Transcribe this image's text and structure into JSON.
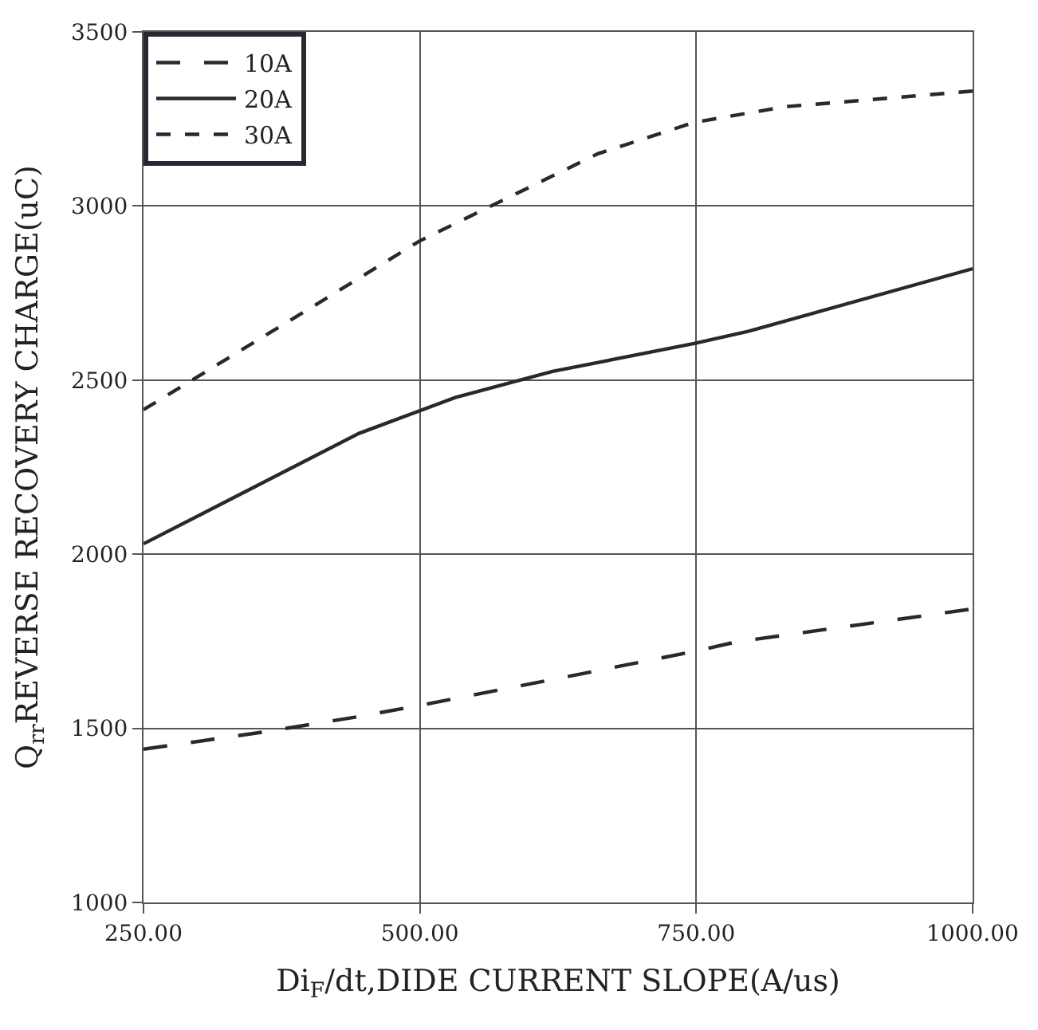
{
  "chart_data": {
    "type": "line",
    "xlabel": "Di$_{F}$/dt,DIDE CURRENT SLOPE(A/us)",
    "ylabel": "Q$_{rr}$REVERSE RECOVERY CHARGE(uC)",
    "xlim": [
      250,
      1000
    ],
    "xticks": [
      {
        "value": 250,
        "label": "250.00"
      },
      {
        "value": 500,
        "label": "500.00"
      },
      {
        "value": 750,
        "label": "750.00"
      },
      {
        "value": 1000,
        "label": "1000.00"
      }
    ],
    "ylim": [
      1000,
      3500
    ],
    "yticks": [
      1000,
      1500,
      2000,
      2500,
      3000,
      3500
    ],
    "grid": true,
    "legend": "top left",
    "marker": "none",
    "series": [
      {
        "name": "10A",
        "color": "#262a30",
        "line_style": "long dashed",
        "x": [
          250,
          360,
          445,
          500,
          620,
          750,
          786,
          1000
        ],
        "values": [
          1440,
          1490,
          1534,
          1566,
          1640,
          1722,
          1748,
          1843
        ]
      },
      {
        "name": "20A",
        "color": "#262a30",
        "line_style": "solid",
        "x": [
          250,
          445,
          532,
          620,
          748,
          797,
          1000
        ],
        "values": [
          2030,
          2347,
          2450,
          2525,
          2605,
          2640,
          2820
        ]
      },
      {
        "name": "30A",
        "color": "#262a30",
        "line_style": "dashed",
        "x": [
          250,
          419,
          500,
          661,
          748,
          830,
          1000
        ],
        "values": [
          2415,
          2742,
          2900,
          3150,
          3240,
          3285,
          3330
        ]
      }
    ]
  }
}
